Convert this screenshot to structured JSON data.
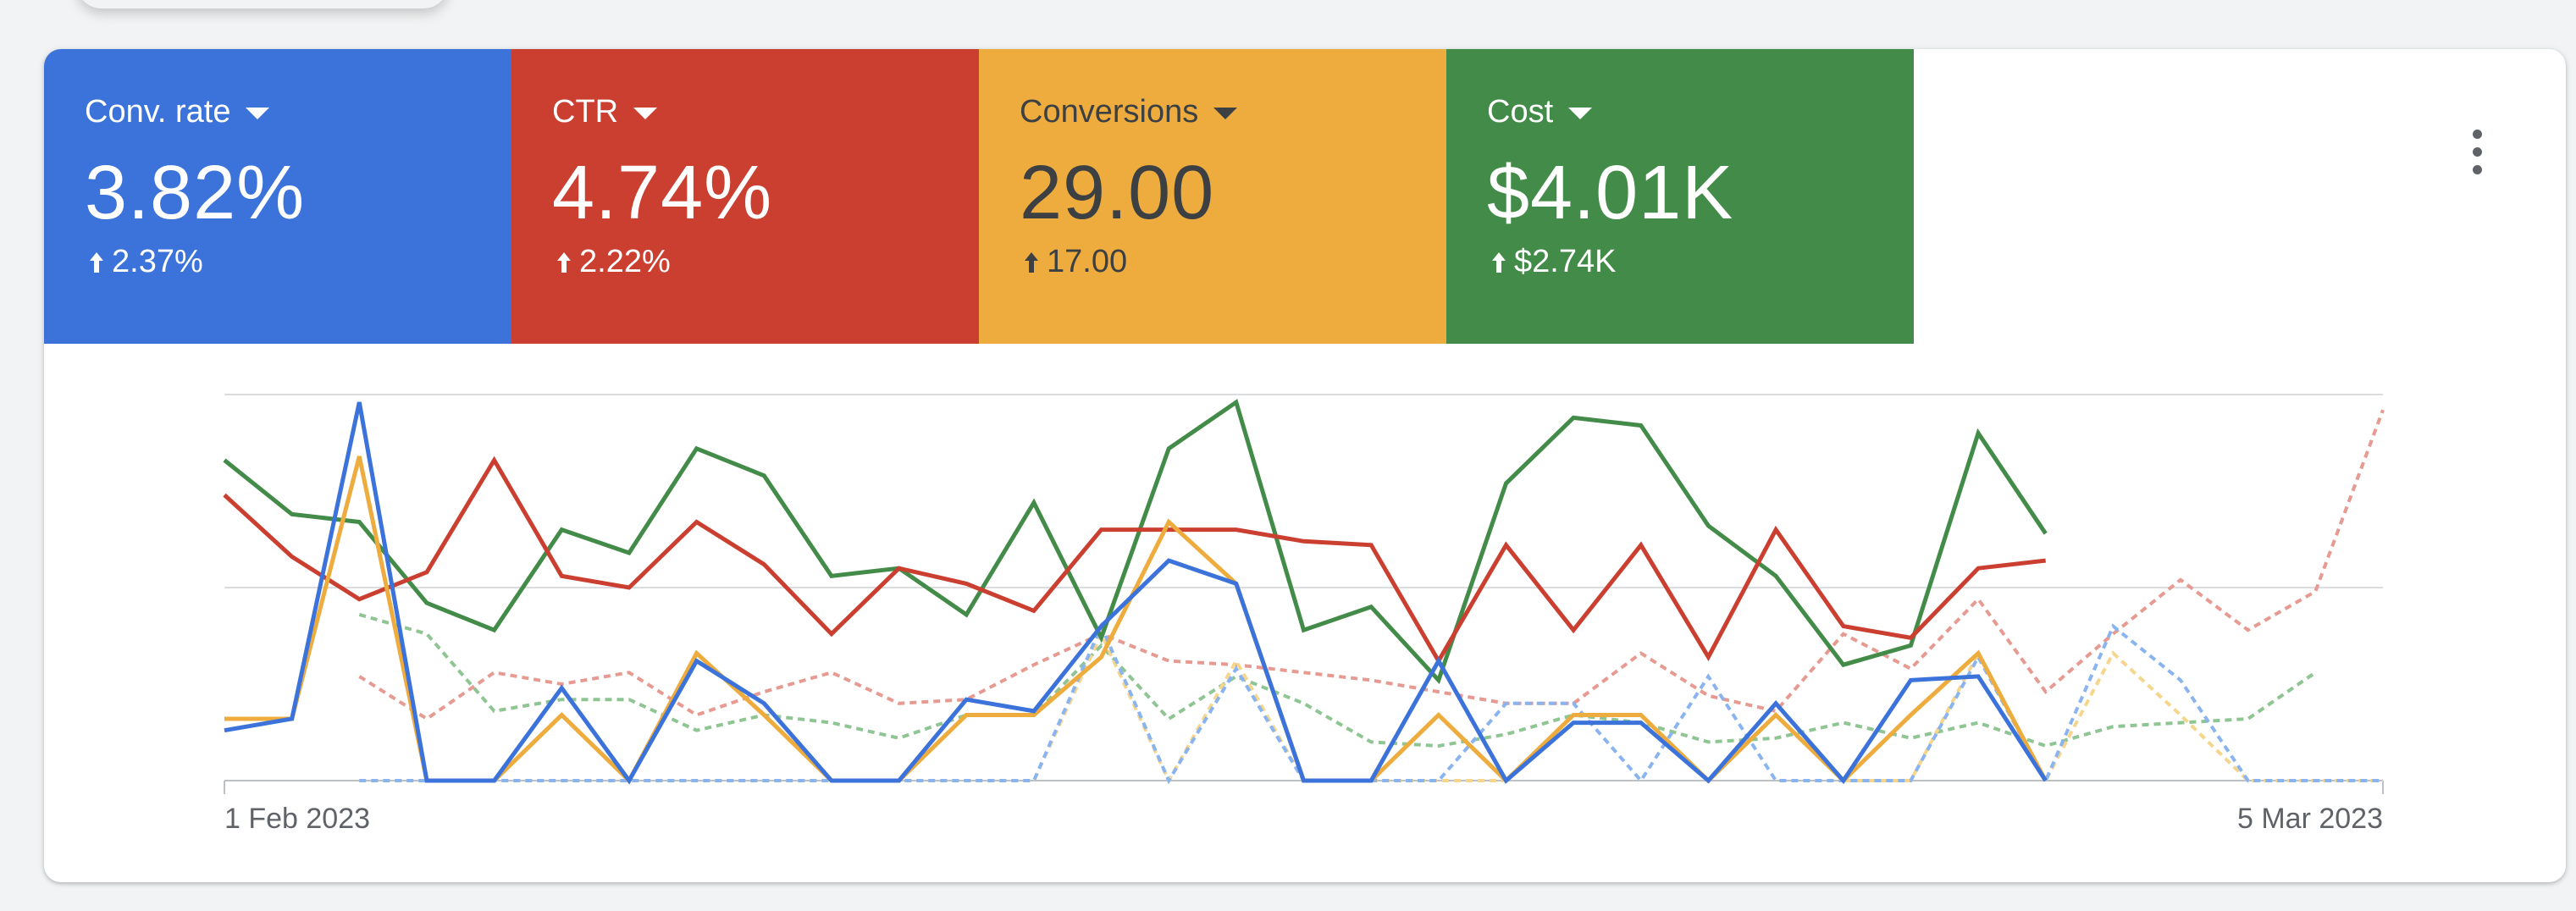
{
  "metrics": [
    {
      "label": "Conv. rate",
      "value": "3.82%",
      "change": "2.37%",
      "color": "#3b73db",
      "text_color": "#ffffff"
    },
    {
      "label": "CTR",
      "value": "4.74%",
      "change": "2.22%",
      "color": "#cb3f31",
      "text_color": "#ffffff"
    },
    {
      "label": "Conversions",
      "value": "29.00",
      "change": "17.00",
      "color": "#edac3d",
      "text_color": "#3c4043"
    },
    {
      "label": "Cost",
      "value": "$4.01K",
      "change": "$2.74K",
      "color": "#438b48",
      "text_color": "#ffffff"
    }
  ],
  "icons": {
    "dropdown": "caret-down-icon",
    "increase": "arrow-up-icon",
    "menu": "more-vert-icon"
  },
  "chart_data": {
    "type": "line",
    "x_tick_labels": [
      "1 Feb 2023",
      "5 Mar 2023"
    ],
    "x_range": [
      "2023-02-01",
      "2023-03-05"
    ],
    "y_scale": "normalized per metric (no y-axis labels shown)",
    "ylim": [
      0,
      100
    ],
    "grid": "horizontal",
    "series": [
      {
        "name": "Cost",
        "color": "#438b48",
        "style": "solid",
        "values": [
          83,
          69,
          67,
          46,
          39,
          65,
          59,
          86,
          79,
          53,
          55,
          43,
          72,
          37,
          86,
          98,
          39,
          45,
          26,
          77,
          94,
          92,
          66,
          53,
          30,
          35,
          90,
          64
        ]
      },
      {
        "name": "CTR",
        "color": "#cb3f31",
        "style": "solid",
        "values": [
          74,
          58,
          47,
          54,
          83,
          53,
          50,
          67,
          56,
          38,
          55,
          51,
          44,
          65,
          65,
          65,
          62,
          61,
          31,
          61,
          39,
          61,
          32,
          65,
          40,
          37,
          55,
          57
        ]
      },
      {
        "name": "Conversions",
        "color": "#edac3d",
        "style": "solid",
        "values": [
          16,
          16,
          84,
          0,
          0,
          17,
          0,
          33,
          17,
          0,
          0,
          17,
          17,
          32,
          67,
          51,
          0,
          0,
          17,
          0,
          17,
          17,
          0,
          17,
          0,
          17,
          33,
          0
        ]
      },
      {
        "name": "Conv. rate",
        "color": "#3b73db",
        "style": "solid",
        "values": [
          13,
          16,
          98,
          0,
          0,
          24,
          0,
          31,
          20,
          0,
          0,
          21,
          18,
          40,
          57,
          51,
          0,
          0,
          31,
          0,
          15,
          15,
          0,
          20,
          0,
          26,
          27,
          0
        ]
      },
      {
        "name": "Cost (previous period)",
        "color": "#8fc493",
        "style": "dotted",
        "values": [
          null,
          null,
          43,
          38,
          18,
          21,
          21,
          13,
          17,
          15,
          11,
          17,
          17,
          35,
          16,
          27,
          20,
          10,
          9,
          12,
          17,
          15,
          10,
          11,
          15,
          11,
          15,
          9,
          14,
          15,
          16,
          28
        ]
      },
      {
        "name": "CTR (previous period)",
        "color": "#e69a91",
        "style": "dotted",
        "values": [
          null,
          null,
          27,
          16,
          28,
          25,
          28,
          17,
          23,
          28,
          20,
          21,
          30,
          38,
          31,
          30,
          28,
          26,
          23,
          20,
          20,
          33,
          22,
          18,
          38,
          29,
          47,
          23,
          38,
          52,
          39,
          49,
          96
        ]
      },
      {
        "name": "Conversions (previous period)",
        "color": "#f6d58d",
        "style": "dotted",
        "values": [
          null,
          null,
          0,
          0,
          0,
          0,
          0,
          0,
          0,
          0,
          0,
          0,
          0,
          38,
          0,
          31,
          0,
          0,
          0,
          0,
          17,
          17,
          0,
          17,
          0,
          0,
          33,
          0,
          33,
          17,
          0,
          0,
          0
        ]
      },
      {
        "name": "Conv. rate (previous period)",
        "color": "#8ab4f0",
        "style": "dotted",
        "values": [
          null,
          null,
          0,
          0,
          0,
          0,
          0,
          0,
          0,
          0,
          0,
          0,
          0,
          40,
          0,
          29,
          0,
          0,
          0,
          20,
          20,
          0,
          27,
          0,
          0,
          0,
          32,
          0,
          40,
          26,
          0,
          0,
          0
        ]
      }
    ]
  }
}
